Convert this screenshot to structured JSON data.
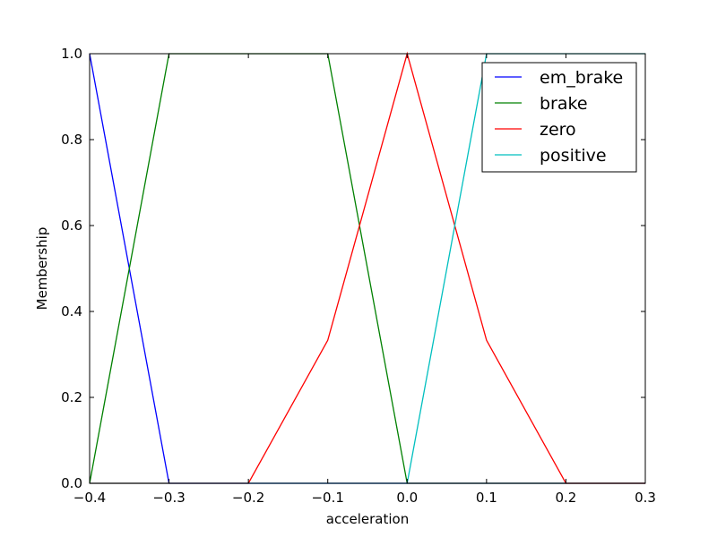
{
  "chart_data": {
    "type": "line",
    "xlabel": "acceleration",
    "ylabel": "Membership",
    "xlim": [
      -0.4,
      0.3
    ],
    "ylim": [
      0.0,
      1.0
    ],
    "xticks": [
      "−0.4",
      "−0.3",
      "−0.2",
      "−0.1",
      "0.0",
      "0.1",
      "0.2",
      "0.3"
    ],
    "yticks": [
      "0.0",
      "0.2",
      "0.4",
      "0.6",
      "0.8",
      "1.0"
    ],
    "grid": false,
    "legend_position": "top-right",
    "series": [
      {
        "name": "em_brake",
        "color": "#0000ff",
        "x": [
          -0.4,
          -0.3,
          0.3
        ],
        "y": [
          1.0,
          0.0,
          0.0
        ]
      },
      {
        "name": "brake",
        "color": "#008000",
        "x": [
          -0.4,
          -0.3,
          -0.1,
          0.0,
          0.3
        ],
        "y": [
          0.0,
          1.0,
          1.0,
          0.0,
          0.0
        ]
      },
      {
        "name": "zero",
        "color": "#ff0000",
        "x": [
          -0.4,
          -0.2,
          -0.1,
          0.0,
          0.1,
          0.2,
          0.3
        ],
        "y": [
          0.0,
          0.0,
          0.333,
          1.0,
          0.333,
          0.0,
          0.0
        ]
      },
      {
        "name": "positive",
        "color": "#00bfbf",
        "x": [
          -0.4,
          0.0,
          0.1,
          0.3
        ],
        "y": [
          0.0,
          0.0,
          1.0,
          1.0
        ]
      }
    ]
  }
}
